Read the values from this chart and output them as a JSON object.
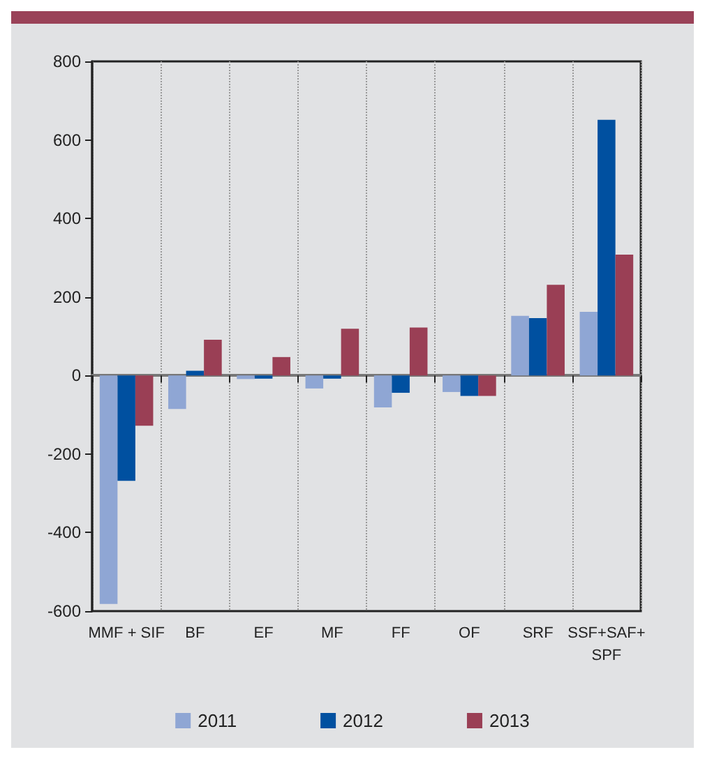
{
  "chart_data": {
    "type": "bar",
    "categories": [
      "MMF + SIF",
      "BF",
      "EF",
      "MF",
      "FF",
      "OF",
      "SRF",
      "SSF+SAF+\nSPF"
    ],
    "series": [
      {
        "name": "2011",
        "color": "#8fa6d4",
        "values": [
          -582,
          -85,
          -9,
          -33,
          -81,
          -42,
          152,
          162
        ]
      },
      {
        "name": "2012",
        "color": "#0050a0",
        "values": [
          -268,
          12,
          -8,
          -8,
          -44,
          -52,
          146,
          651
        ]
      },
      {
        "name": "2013",
        "color": "#9a3f55",
        "values": [
          -128,
          91,
          47,
          119,
          122,
          -52,
          231,
          308
        ]
      }
    ],
    "ylim": [
      -600,
      800
    ],
    "yticks": [
      -600,
      -400,
      -200,
      0,
      200,
      400,
      600,
      800
    ],
    "grid": "x",
    "legend": "bottom"
  }
}
